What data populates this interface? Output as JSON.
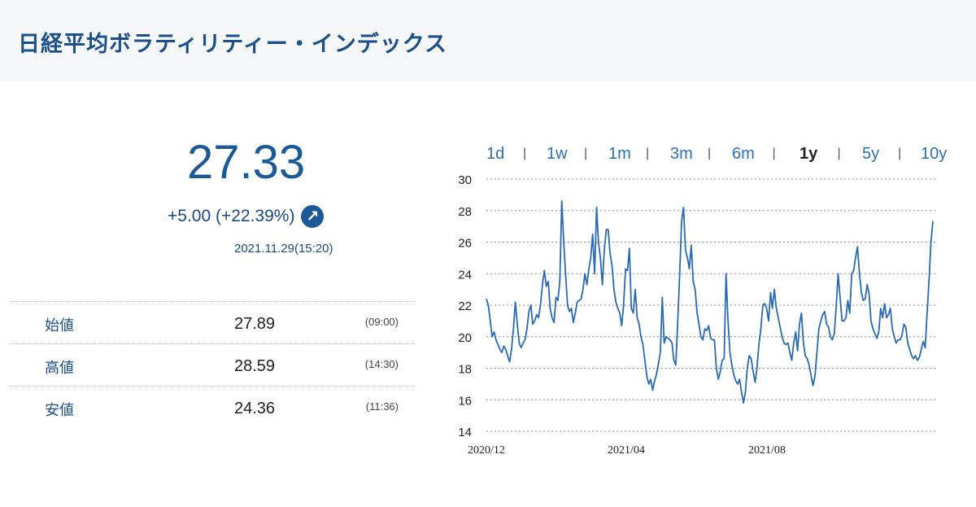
{
  "header": {
    "title": "日経平均ボラティリティー・インデックス"
  },
  "quote": {
    "price": "27.33",
    "change": "+5.00 (+22.39%)",
    "direction_icon": "arrow-up-right-icon",
    "timestamp": "2021.11.29(15:20)"
  },
  "stats": [
    {
      "label": "始値",
      "value": "27.89",
      "time": "(09:00)"
    },
    {
      "label": "高値",
      "value": "28.59",
      "time": "(14:30)"
    },
    {
      "label": "安値",
      "value": "24.36",
      "time": "(11:36)"
    }
  ],
  "ranges": [
    {
      "label": "1d"
    },
    {
      "label": "1w"
    },
    {
      "label": "1m"
    },
    {
      "label": "3m"
    },
    {
      "label": "6m"
    },
    {
      "label": "1y",
      "active": true
    },
    {
      "label": "5y"
    },
    {
      "label": "10y"
    }
  ],
  "range_separator": "|",
  "chart_data": {
    "type": "line",
    "title": "",
    "xlabel": "",
    "ylabel": "",
    "ylim": [
      14,
      30
    ],
    "yticks": [
      "14",
      "16",
      "18",
      "20",
      "22",
      "24",
      "26",
      "28",
      "30"
    ],
    "xticks": [
      "2020/12",
      "2021/04",
      "2021/08"
    ],
    "grid": true,
    "color": "#2a6ab5",
    "values": [
      22.4,
      22,
      21,
      20,
      20.3,
      19.8,
      19.5,
      19.2,
      19,
      19.4,
      19.2,
      18.8,
      18.4,
      19.2,
      20.5,
      22.2,
      20.8,
      19.6,
      19.3,
      19.6,
      19.8,
      20.5,
      21.6,
      22,
      20.8,
      21,
      21.4,
      21.2,
      22,
      23.3,
      24.2,
      23.2,
      23.5,
      21.8,
      21.2,
      20.9,
      22.5,
      22.3,
      23.5,
      28.6,
      26,
      24,
      22,
      21.6,
      21.8,
      20.9,
      21.5,
      22.2,
      22.3,
      22.4,
      23,
      24,
      23.3,
      24.3,
      25,
      26.5,
      24,
      28.2,
      26,
      25,
      23.3,
      25.5,
      26.8,
      26.8,
      25.3,
      24.5,
      23,
      22.2,
      21.8,
      21.5,
      20.7,
      22,
      24.3,
      24.2,
      25.6,
      21.8,
      21.5,
      23,
      21.2,
      20.8,
      20,
      19.5,
      18.5,
      17.5,
      17,
      17.3,
      16.6,
      17.2,
      17.6,
      18.3,
      19,
      22.5,
      19.6,
      20,
      19.9,
      19.8,
      19.6,
      18.5,
      18.2,
      21,
      24,
      27.3,
      28.2,
      25.5,
      25,
      24.3,
      25.8,
      23.5,
      23,
      21.5,
      20.8,
      20,
      19.8,
      20.5,
      20.4,
      20.7,
      19.9,
      19.8,
      19.8,
      18,
      17.3,
      17.8,
      18.5,
      18.6,
      24,
      21,
      19,
      18.2,
      17.6,
      17.2,
      17,
      17.3,
      16.5,
      15.8,
      16.5,
      18,
      18.8,
      18.6,
      17.8,
      17.1,
      18,
      19.5,
      20.5,
      22,
      22.1,
      21.8,
      21,
      22.8,
      21.8,
      23,
      21.8,
      21.2,
      20.6,
      20,
      19.6,
      19.5,
      19.6,
      19,
      18.5,
      19.6,
      20.3,
      19.1,
      20.8,
      21.5,
      19.6,
      18.8,
      18.6,
      18.2,
      17.5,
      16.9,
      17.5,
      19,
      20.5,
      21,
      21.4,
      21.6,
      20.8,
      20.6,
      20,
      19.8,
      20.2,
      22,
      24,
      22.5,
      21,
      21,
      21.2,
      22.3,
      21.5,
      24,
      24.2,
      25,
      25.7,
      24,
      22.8,
      22.3,
      22.4,
      23.3,
      22.7,
      21,
      20.5,
      20.2,
      19.9,
      20.3,
      21.8,
      21.2,
      22.1,
      21.2,
      21.4,
      21.8,
      20.5,
      20,
      19.6,
      19.8,
      19.8,
      20.1,
      20.8,
      20.6,
      19.6,
      19.2,
      18.8,
      18.6,
      18.8,
      18.5,
      18.7,
      19.2,
      19.7,
      19.3,
      21.5,
      23.5,
      26,
      27.33
    ]
  }
}
